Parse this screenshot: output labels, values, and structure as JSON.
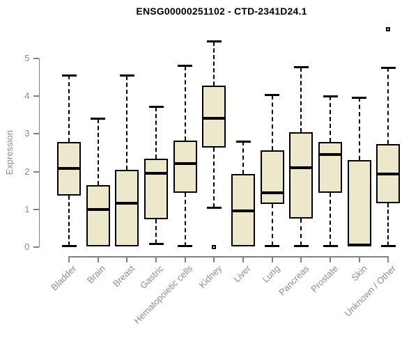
{
  "title": "ENSG00000251102 - CTD-2341D24.1",
  "chart_data": {
    "type": "boxplot",
    "title": "ENSG00000251102 - CTD-2341D24.1",
    "xlabel": "",
    "ylabel": "Expression",
    "ylim": [
      0,
      5.8
    ],
    "yticks": [
      0,
      1,
      2,
      3,
      4,
      5
    ],
    "grid": false,
    "legend": "none",
    "outlier_marker": "open-square",
    "categories": [
      "Bladder",
      "Brain",
      "Breast",
      "Gastric",
      "Hematopoietic cells",
      "Kidney",
      "Liver",
      "Lung",
      "Pancreas",
      "Prostate",
      "Skin",
      "Unknown / Other"
    ],
    "boxes": [
      {
        "name": "Bladder",
        "whisker_low": 0.03,
        "q1": 1.36,
        "median": 2.09,
        "q3": 2.79,
        "whisker_high": 4.55,
        "outliers": []
      },
      {
        "name": "Brain",
        "whisker_low": 0.02,
        "q1": 0.02,
        "median": 1.0,
        "q3": 1.64,
        "whisker_high": 3.4,
        "outliers": []
      },
      {
        "name": "Breast",
        "whisker_low": 0.02,
        "q1": 0.02,
        "median": 1.17,
        "q3": 2.04,
        "whisker_high": 4.54,
        "outliers": []
      },
      {
        "name": "Gastric",
        "whisker_low": 0.09,
        "q1": 0.74,
        "median": 1.96,
        "q3": 2.35,
        "whisker_high": 3.71,
        "outliers": []
      },
      {
        "name": "Hematopoietic cells",
        "whisker_low": 0.02,
        "q1": 1.43,
        "median": 2.22,
        "q3": 2.83,
        "whisker_high": 4.8,
        "outliers": []
      },
      {
        "name": "Kidney",
        "whisker_low": 1.05,
        "q1": 2.63,
        "median": 3.41,
        "q3": 4.27,
        "whisker_high": 5.44,
        "outliers": [
          0.0
        ]
      },
      {
        "name": "Liver",
        "whisker_low": 0.02,
        "q1": 0.02,
        "median": 0.96,
        "q3": 1.93,
        "whisker_high": 2.8,
        "outliers": []
      },
      {
        "name": "Lung",
        "whisker_low": 0.03,
        "q1": 1.14,
        "median": 1.43,
        "q3": 2.57,
        "whisker_high": 4.02,
        "outliers": []
      },
      {
        "name": "Pancreas",
        "whisker_low": 0.03,
        "q1": 0.76,
        "median": 2.1,
        "q3": 3.04,
        "whisker_high": 4.76,
        "outliers": []
      },
      {
        "name": "Prostate",
        "whisker_low": 0.03,
        "q1": 1.43,
        "median": 2.45,
        "q3": 2.78,
        "whisker_high": 4.0,
        "outliers": []
      },
      {
        "name": "Skin",
        "whisker_low": 0.02,
        "q1": 0.02,
        "median": 0.05,
        "q3": 2.31,
        "whisker_high": 3.96,
        "outliers": []
      },
      {
        "name": "Unknown / Other",
        "whisker_low": 0.03,
        "q1": 1.16,
        "median": 1.93,
        "q3": 2.73,
        "whisker_high": 4.75,
        "outliers": [
          5.77
        ]
      }
    ],
    "colors": {
      "box_fill": "#ede8cc",
      "box_border": "#000000",
      "median": "#000000",
      "whisker": "#000000",
      "axis": "#808080",
      "tick_label": "#8c8c8c",
      "title": "#000000",
      "background": "#ffffff"
    }
  }
}
